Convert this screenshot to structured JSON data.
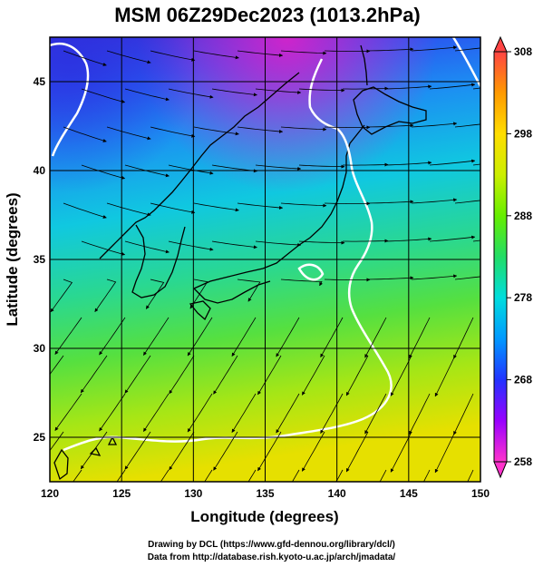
{
  "title": "MSM 06Z29Dec2023 (1013.2hPa)",
  "xlabel": "Longitude (degrees)",
  "ylabel": "Latitude  (degrees)",
  "x_ticks": [
    "120",
    "125",
    "130",
    "135",
    "140",
    "145",
    "150"
  ],
  "y_ticks": [
    "25",
    "30",
    "35",
    "40",
    "45"
  ],
  "x_range": [
    120,
    150
  ],
  "y_range": [
    22.5,
    47.5
  ],
  "colorbar": {
    "ticks": [
      "258",
      "268",
      "278",
      "288",
      "298",
      "308"
    ],
    "range": [
      258,
      308
    ],
    "colors": [
      "#ff33cc",
      "#9900ff",
      "#2233ff",
      "#0099ff",
      "#00dddd",
      "#22dd66",
      "#66ee00",
      "#ccee00",
      "#ffdd00",
      "#ff9900",
      "#ff4444"
    ]
  },
  "credits": {
    "line1": "Drawing by DCL (https://www.gfd-dennou.org/library/dcl/)",
    "line2": "Data from http://database.rish.kyoto-u.ac.jp/arch/jmadata/"
  }
}
